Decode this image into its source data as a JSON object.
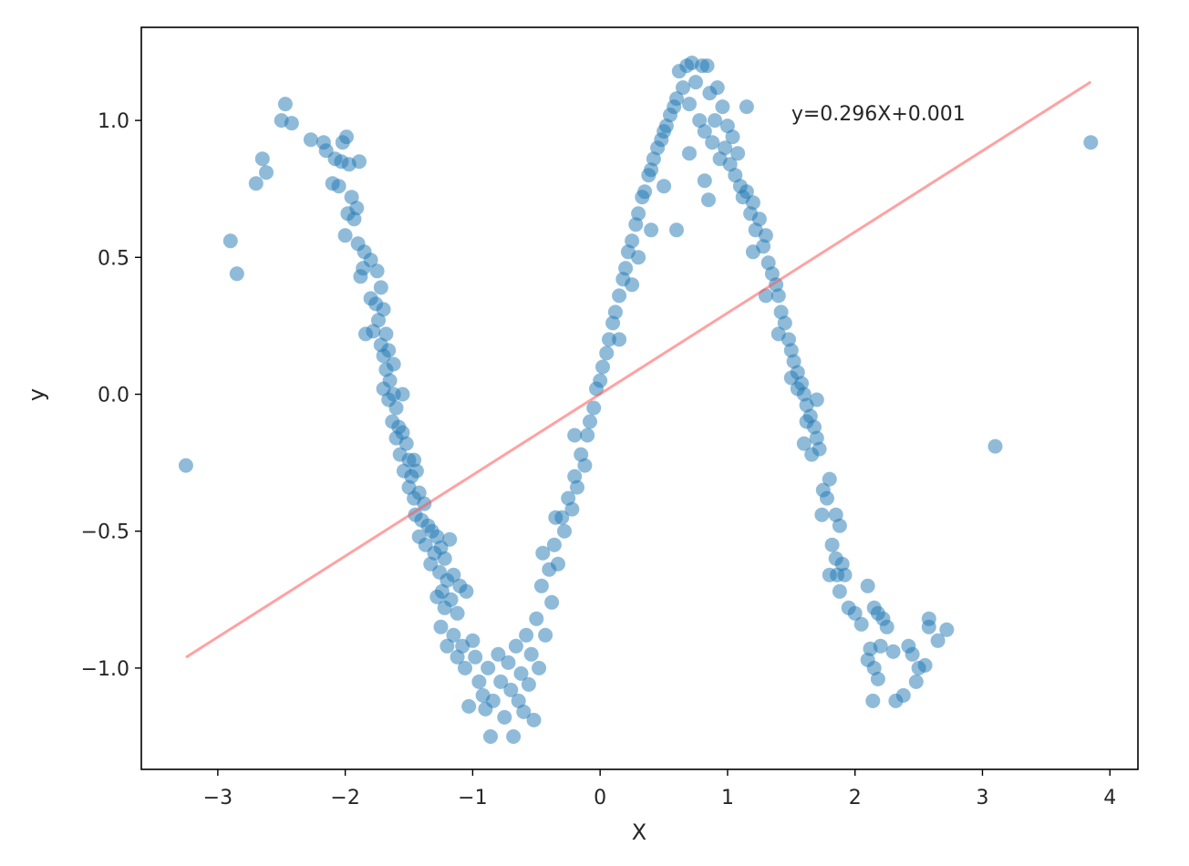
{
  "chart_data": {
    "type": "scatter",
    "title": "",
    "xlabel": "X",
    "ylabel": "y",
    "xlim": [
      -3.6,
      4.22
    ],
    "ylim": [
      -1.37,
      1.34
    ],
    "grid": false,
    "legend": "none",
    "x_ticks": [
      -3,
      -2,
      -1,
      0,
      1,
      2,
      3,
      4
    ],
    "x_tick_labels": [
      "−3",
      "−2",
      "−1",
      "0",
      "1",
      "2",
      "3",
      "4"
    ],
    "y_ticks": [
      -1.0,
      -0.5,
      0.0,
      0.5,
      1.0
    ],
    "y_tick_labels": [
      "−1.0",
      "−0.5",
      "0.0",
      "0.5",
      "1.0"
    ],
    "scatter_color": "#1f77b4",
    "scatter_alpha": 0.5,
    "fit_line": {
      "slope": 0.296,
      "intercept": 0.001,
      "x_range": [
        -3.25,
        3.85
      ],
      "color": "#ff5555",
      "alpha": 0.55
    },
    "annotation": {
      "text": "y=0.296X+0.001",
      "x": 1.5,
      "y": 1.0
    },
    "points": [
      [
        -3.25,
        -0.26
      ],
      [
        -2.9,
        0.56
      ],
      [
        -2.85,
        0.44
      ],
      [
        -2.7,
        0.77
      ],
      [
        -2.65,
        0.86
      ],
      [
        -2.62,
        0.81
      ],
      [
        -2.5,
        1.0
      ],
      [
        -2.47,
        1.06
      ],
      [
        -2.42,
        0.99
      ],
      [
        -2.27,
        0.93
      ],
      [
        -2.17,
        0.92
      ],
      [
        -2.15,
        0.89
      ],
      [
        -2.08,
        0.86
      ],
      [
        -2.02,
        0.92
      ],
      [
        -1.99,
        0.94
      ],
      [
        -2.03,
        0.85
      ],
      [
        -1.97,
        0.84
      ],
      [
        -1.89,
        0.85
      ],
      [
        -2.1,
        0.77
      ],
      [
        -2.05,
        0.76
      ],
      [
        -1.95,
        0.72
      ],
      [
        -1.91,
        0.68
      ],
      [
        -1.98,
        0.66
      ],
      [
        -1.93,
        0.64
      ],
      [
        -2.0,
        0.58
      ],
      [
        -1.9,
        0.55
      ],
      [
        -1.85,
        0.52
      ],
      [
        -1.8,
        0.49
      ],
      [
        -1.86,
        0.46
      ],
      [
        -1.75,
        0.45
      ],
      [
        -1.88,
        0.43
      ],
      [
        -1.72,
        0.39
      ],
      [
        -1.8,
        0.35
      ],
      [
        -1.76,
        0.33
      ],
      [
        -1.7,
        0.31
      ],
      [
        -1.74,
        0.27
      ],
      [
        -1.78,
        0.23
      ],
      [
        -1.84,
        0.22
      ],
      [
        -1.68,
        0.22
      ],
      [
        -1.72,
        0.18
      ],
      [
        -1.66,
        0.16
      ],
      [
        -1.7,
        0.14
      ],
      [
        -1.62,
        0.11
      ],
      [
        -1.68,
        0.09
      ],
      [
        -1.65,
        0.05
      ],
      [
        -1.7,
        0.02
      ],
      [
        -1.62,
        0.0
      ],
      [
        -1.55,
        0.0
      ],
      [
        -1.66,
        -0.02
      ],
      [
        -1.6,
        -0.05
      ],
      [
        -1.63,
        -0.1
      ],
      [
        -1.58,
        -0.12
      ],
      [
        -1.55,
        -0.14
      ],
      [
        -1.6,
        -0.16
      ],
      [
        -1.52,
        -0.18
      ],
      [
        -1.57,
        -0.22
      ],
      [
        -1.5,
        -0.24
      ],
      [
        -1.46,
        -0.24
      ],
      [
        -1.54,
        -0.28
      ],
      [
        -1.48,
        -0.3
      ],
      [
        -1.44,
        -0.28
      ],
      [
        -1.5,
        -0.34
      ],
      [
        -1.46,
        -0.38
      ],
      [
        -1.42,
        -0.36
      ],
      [
        -1.38,
        -0.4
      ],
      [
        -1.45,
        -0.44
      ],
      [
        -1.4,
        -0.46
      ],
      [
        -1.35,
        -0.48
      ],
      [
        -1.42,
        -0.52
      ],
      [
        -1.32,
        -0.5
      ],
      [
        -1.28,
        -0.52
      ],
      [
        -1.37,
        -0.55
      ],
      [
        -1.3,
        -0.58
      ],
      [
        -1.25,
        -0.56
      ],
      [
        -1.33,
        -0.62
      ],
      [
        -1.22,
        -0.6
      ],
      [
        -1.18,
        -0.53
      ],
      [
        -1.26,
        -0.65
      ],
      [
        -1.2,
        -0.68
      ],
      [
        -1.15,
        -0.66
      ],
      [
        -1.24,
        -0.72
      ],
      [
        -1.1,
        -0.7
      ],
      [
        -1.17,
        -0.75
      ],
      [
        -1.28,
        -0.74
      ],
      [
        -1.22,
        -0.78
      ],
      [
        -1.12,
        -0.8
      ],
      [
        -1.05,
        -0.72
      ],
      [
        -1.25,
        -0.85
      ],
      [
        -1.15,
        -0.88
      ],
      [
        -1.2,
        -0.92
      ],
      [
        -1.08,
        -0.92
      ],
      [
        -1.0,
        -0.9
      ],
      [
        -1.12,
        -0.96
      ],
      [
        -1.06,
        -1.0
      ],
      [
        -0.98,
        -0.96
      ],
      [
        -1.03,
        -1.14
      ],
      [
        -0.92,
        -1.1
      ],
      [
        -0.88,
        -1.0
      ],
      [
        -0.95,
        -1.05
      ],
      [
        -0.9,
        -1.15
      ],
      [
        -0.84,
        -1.12
      ],
      [
        -0.86,
        -1.25
      ],
      [
        -0.8,
        -0.95
      ],
      [
        -0.78,
        -1.05
      ],
      [
        -0.75,
        -1.18
      ],
      [
        -0.72,
        -0.98
      ],
      [
        -0.7,
        -1.08
      ],
      [
        -0.68,
        -1.25
      ],
      [
        -0.66,
        -0.92
      ],
      [
        -0.64,
        -1.12
      ],
      [
        -0.62,
        -1.02
      ],
      [
        -0.6,
        -1.16
      ],
      [
        -0.58,
        -0.88
      ],
      [
        -0.56,
        -1.06
      ],
      [
        -0.54,
        -0.95
      ],
      [
        -0.52,
        -1.19
      ],
      [
        -0.5,
        -0.82
      ],
      [
        -0.48,
        -1.0
      ],
      [
        -0.46,
        -0.7
      ],
      [
        -0.45,
        -0.58
      ],
      [
        -0.43,
        -0.88
      ],
      [
        -0.4,
        -0.64
      ],
      [
        -0.38,
        -0.76
      ],
      [
        -0.36,
        -0.55
      ],
      [
        -0.33,
        -0.62
      ],
      [
        -0.3,
        -0.45
      ],
      [
        -0.28,
        -0.5
      ],
      [
        -0.25,
        -0.38
      ],
      [
        -0.22,
        -0.42
      ],
      [
        -0.2,
        -0.3
      ],
      [
        -0.18,
        -0.34
      ],
      [
        -0.15,
        -0.22
      ],
      [
        -0.12,
        -0.26
      ],
      [
        -0.1,
        -0.15
      ],
      [
        -0.08,
        -0.1
      ],
      [
        -0.05,
        -0.05
      ],
      [
        -0.03,
        0.02
      ],
      [
        0.0,
        0.05
      ],
      [
        0.02,
        0.1
      ],
      [
        0.05,
        0.15
      ],
      [
        0.07,
        0.2
      ],
      [
        0.1,
        0.26
      ],
      [
        0.12,
        0.3
      ],
      [
        0.15,
        0.36
      ],
      [
        0.18,
        0.42
      ],
      [
        0.2,
        0.46
      ],
      [
        0.22,
        0.52
      ],
      [
        0.25,
        0.56
      ],
      [
        0.28,
        0.62
      ],
      [
        0.3,
        0.66
      ],
      [
        0.33,
        0.72
      ],
      [
        0.35,
        0.74
      ],
      [
        0.38,
        0.8
      ],
      [
        0.4,
        0.82
      ],
      [
        0.42,
        0.86
      ],
      [
        0.45,
        0.9
      ],
      [
        0.48,
        0.93
      ],
      [
        0.5,
        0.96
      ],
      [
        0.52,
        0.98
      ],
      [
        0.55,
        1.02
      ],
      [
        0.58,
        1.05
      ],
      [
        0.6,
        1.08
      ],
      [
        0.62,
        1.18
      ],
      [
        0.65,
        1.12
      ],
      [
        0.68,
        1.2
      ],
      [
        0.7,
        1.06
      ],
      [
        0.72,
        1.21
      ],
      [
        0.75,
        1.14
      ],
      [
        0.78,
        1.0
      ],
      [
        0.8,
        1.2
      ],
      [
        0.82,
        0.96
      ],
      [
        0.84,
        1.2
      ],
      [
        0.86,
        1.1
      ],
      [
        0.88,
        0.92
      ],
      [
        0.9,
        1.0
      ],
      [
        0.92,
        1.12
      ],
      [
        0.94,
        0.86
      ],
      [
        0.96,
        1.05
      ],
      [
        0.98,
        0.9
      ],
      [
        1.0,
        0.98
      ],
      [
        1.02,
        0.84
      ],
      [
        1.04,
        0.94
      ],
      [
        1.06,
        0.8
      ],
      [
        1.08,
        0.88
      ],
      [
        1.1,
        0.76
      ],
      [
        1.12,
        0.72
      ],
      [
        1.15,
        0.74
      ],
      [
        1.18,
        0.66
      ],
      [
        1.2,
        0.7
      ],
      [
        1.22,
        0.6
      ],
      [
        1.25,
        0.64
      ],
      [
        1.28,
        0.54
      ],
      [
        1.3,
        0.58
      ],
      [
        1.32,
        0.48
      ],
      [
        1.35,
        0.44
      ],
      [
        1.38,
        0.4
      ],
      [
        1.4,
        0.36
      ],
      [
        1.42,
        0.3
      ],
      [
        1.45,
        0.26
      ],
      [
        1.48,
        0.2
      ],
      [
        1.5,
        0.16
      ],
      [
        1.52,
        0.12
      ],
      [
        1.55,
        0.08
      ],
      [
        1.58,
        0.04
      ],
      [
        1.6,
        0.0
      ],
      [
        1.62,
        -0.04
      ],
      [
        1.65,
        -0.08
      ],
      [
        1.68,
        -0.12
      ],
      [
        1.7,
        -0.16
      ],
      [
        1.72,
        -0.2
      ],
      [
        0.6,
        0.6
      ],
      [
        0.85,
        0.71
      ],
      [
        0.82,
        0.78
      ],
      [
        1.15,
        1.05
      ],
      [
        0.7,
        0.88
      ],
      [
        0.3,
        0.5
      ],
      [
        0.15,
        0.2
      ],
      [
        -0.2,
        -0.15
      ],
      [
        -0.35,
        -0.45
      ],
      [
        0.4,
        0.6
      ],
      [
        0.5,
        0.76
      ],
      [
        0.25,
        0.4
      ],
      [
        1.2,
        0.52
      ],
      [
        1.3,
        0.36
      ],
      [
        1.4,
        0.22
      ],
      [
        1.5,
        0.06
      ],
      [
        1.62,
        -0.1
      ],
      [
        1.55,
        0.02
      ],
      [
        1.6,
        -0.18
      ],
      [
        1.66,
        -0.22
      ],
      [
        1.7,
        -0.02
      ],
      [
        1.75,
        -0.35
      ],
      [
        1.78,
        -0.38
      ],
      [
        1.8,
        -0.31
      ],
      [
        1.74,
        -0.44
      ],
      [
        1.85,
        -0.44
      ],
      [
        1.88,
        -0.48
      ],
      [
        1.82,
        -0.55
      ],
      [
        1.85,
        -0.6
      ],
      [
        1.9,
        -0.62
      ],
      [
        1.8,
        -0.66
      ],
      [
        1.86,
        -0.66
      ],
      [
        1.92,
        -0.66
      ],
      [
        1.88,
        -0.72
      ],
      [
        1.95,
        -0.78
      ],
      [
        2.0,
        -0.8
      ],
      [
        2.05,
        -0.84
      ],
      [
        2.1,
        -0.7
      ],
      [
        2.15,
        -0.78
      ],
      [
        2.18,
        -0.8
      ],
      [
        2.22,
        -0.82
      ],
      [
        2.2,
        -0.92
      ],
      [
        2.12,
        -0.93
      ],
      [
        2.1,
        -0.97
      ],
      [
        2.15,
        -1.0
      ],
      [
        2.18,
        -1.04
      ],
      [
        2.14,
        -1.12
      ],
      [
        2.25,
        -0.85
      ],
      [
        2.3,
        -0.94
      ],
      [
        2.32,
        -1.12
      ],
      [
        2.38,
        -1.1
      ],
      [
        2.42,
        -0.92
      ],
      [
        2.45,
        -0.95
      ],
      [
        2.48,
        -1.05
      ],
      [
        2.5,
        -1.0
      ],
      [
        2.55,
        -0.99
      ],
      [
        2.58,
        -0.85
      ],
      [
        2.58,
        -0.82
      ],
      [
        2.65,
        -0.9
      ],
      [
        2.72,
        -0.86
      ],
      [
        3.1,
        -0.19
      ],
      [
        3.85,
        0.92
      ]
    ]
  }
}
